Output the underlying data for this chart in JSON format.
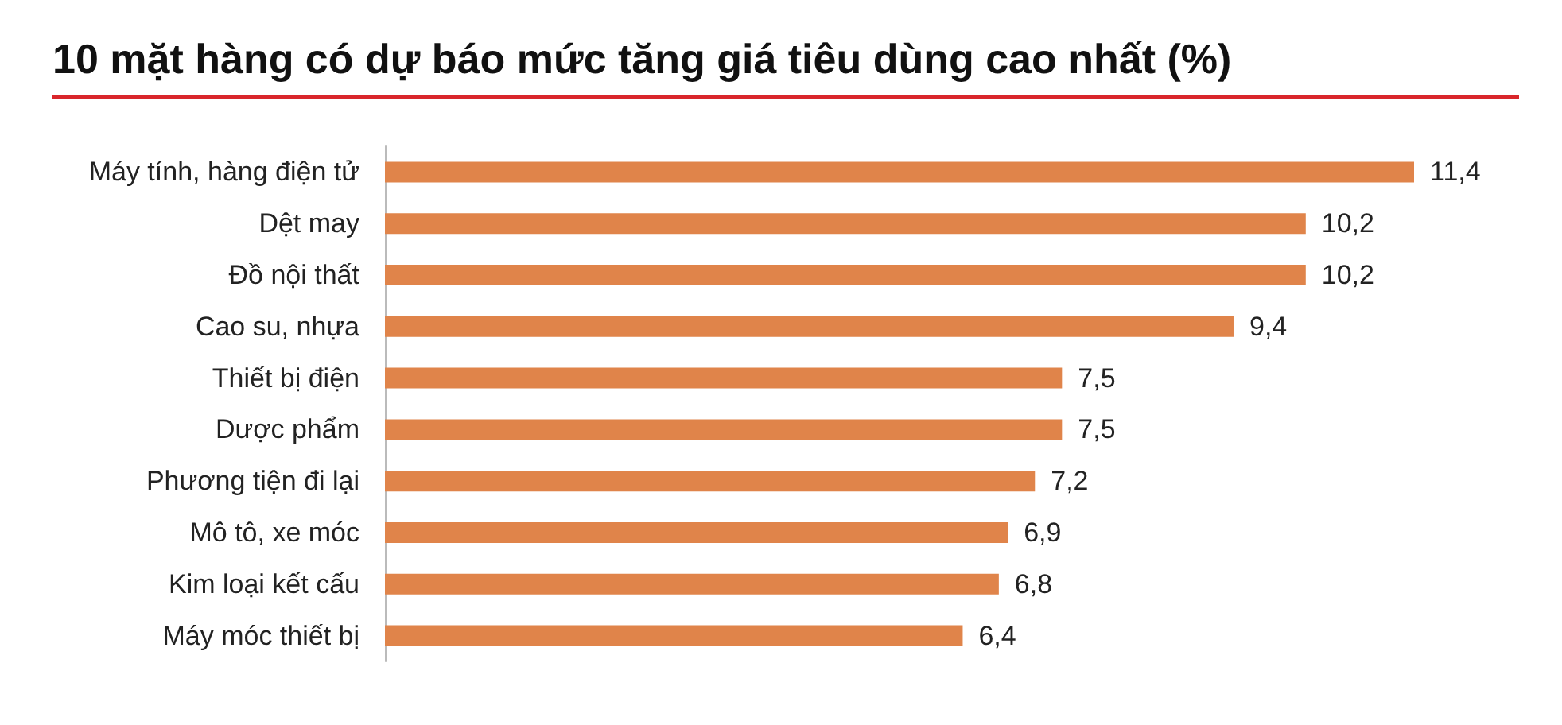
{
  "chart_data": {
    "type": "bar",
    "orientation": "horizontal",
    "title": "10 mặt hàng có dự báo mức tăng giá tiêu dùng cao nhất (%)",
    "categories": [
      "Máy tính, hàng điện tử",
      "Dệt may",
      "Đồ nội thất",
      "Cao su, nhựa",
      "Thiết bị điện",
      "Dược phẩm",
      "Phương tiện đi lại",
      "Mô tô, xe móc",
      "Kim loại kết cấu",
      "Máy móc thiết bị"
    ],
    "values": [
      11.4,
      10.2,
      10.2,
      9.4,
      7.5,
      7.5,
      7.2,
      6.9,
      6.8,
      6.4
    ],
    "value_labels": [
      "11,4",
      "10,2",
      "10,2",
      "9,4",
      "7,5",
      "7,5",
      "7,2",
      "6,9",
      "6,8",
      "6,4"
    ],
    "color": "#e0844a"
  }
}
